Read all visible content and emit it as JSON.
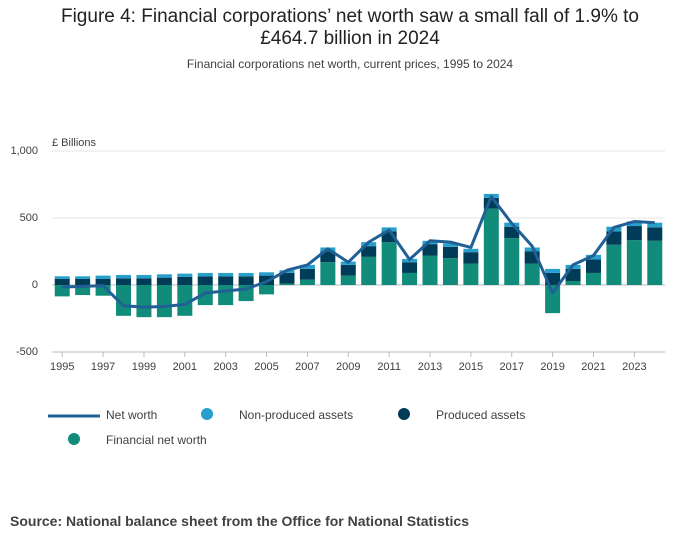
{
  "chart_data": {
    "type": "stacked-bar-line",
    "title": "Figure 4: Financial corporations’ net worth saw a small fall of 1.9% to £464.7 billion in 2024",
    "subtitle": "Financial corporations net worth, current prices, 1995 to 2024",
    "y_label": "£ Billions",
    "source": "Source: National balance sheet from the Office for National Statistics",
    "x": [
      1995,
      1996,
      1997,
      1998,
      1999,
      2000,
      2001,
      2002,
      2003,
      2004,
      2005,
      2006,
      2007,
      2008,
      2009,
      2010,
      2011,
      2012,
      2013,
      2014,
      2015,
      2016,
      2017,
      2018,
      2019,
      2020,
      2021,
      2022,
      2023,
      2024
    ],
    "xlim": [
      1994.5,
      2024.5
    ],
    "xticks": [
      1995,
      1997,
      1999,
      2001,
      2003,
      2005,
      2007,
      2009,
      2011,
      2013,
      2015,
      2017,
      2019,
      2021,
      2023
    ],
    "ylim": [
      -500,
      1000
    ],
    "yticks": [
      -500,
      0,
      500,
      {
        "value": 1000,
        "label": "1,000"
      }
    ],
    "grid": true,
    "series": [
      {
        "name": "Financial net worth",
        "kind": "bar",
        "color": "#118c7b",
        "values": [
          -85,
          -75,
          -80,
          -230,
          -240,
          -240,
          -230,
          -150,
          -150,
          -120,
          -70,
          10,
          40,
          170,
          70,
          210,
          320,
          90,
          220,
          200,
          160,
          570,
          350,
          160,
          -210,
          30,
          90,
          300,
          335,
          330
        ]
      },
      {
        "name": "Produced assets",
        "kind": "bar",
        "color": "#003c57",
        "values": [
          45,
          45,
          45,
          50,
          50,
          55,
          60,
          65,
          65,
          65,
          70,
          80,
          80,
          80,
          80,
          80,
          80,
          80,
          85,
          85,
          85,
          80,
          85,
          90,
          90,
          90,
          100,
          100,
          105,
          100
        ]
      },
      {
        "name": "Non-produced assets",
        "kind": "bar",
        "color": "#27a0cc",
        "values": [
          20,
          20,
          25,
          25,
          25,
          25,
          25,
          25,
          25,
          25,
          25,
          20,
          30,
          30,
          25,
          30,
          30,
          25,
          25,
          25,
          25,
          30,
          30,
          30,
          30,
          30,
          35,
          35,
          35,
          35
        ]
      },
      {
        "name": "Net worth",
        "kind": "line",
        "color": "#206095",
        "values": [
          -15,
          -10,
          -5,
          -155,
          -165,
          -160,
          -145,
          -60,
          -45,
          -30,
          25,
          110,
          150,
          270,
          170,
          320,
          410,
          190,
          330,
          320,
          280,
          660,
          460,
          290,
          -60,
          150,
          220,
          430,
          473.8,
          464.7
        ]
      }
    ]
  }
}
